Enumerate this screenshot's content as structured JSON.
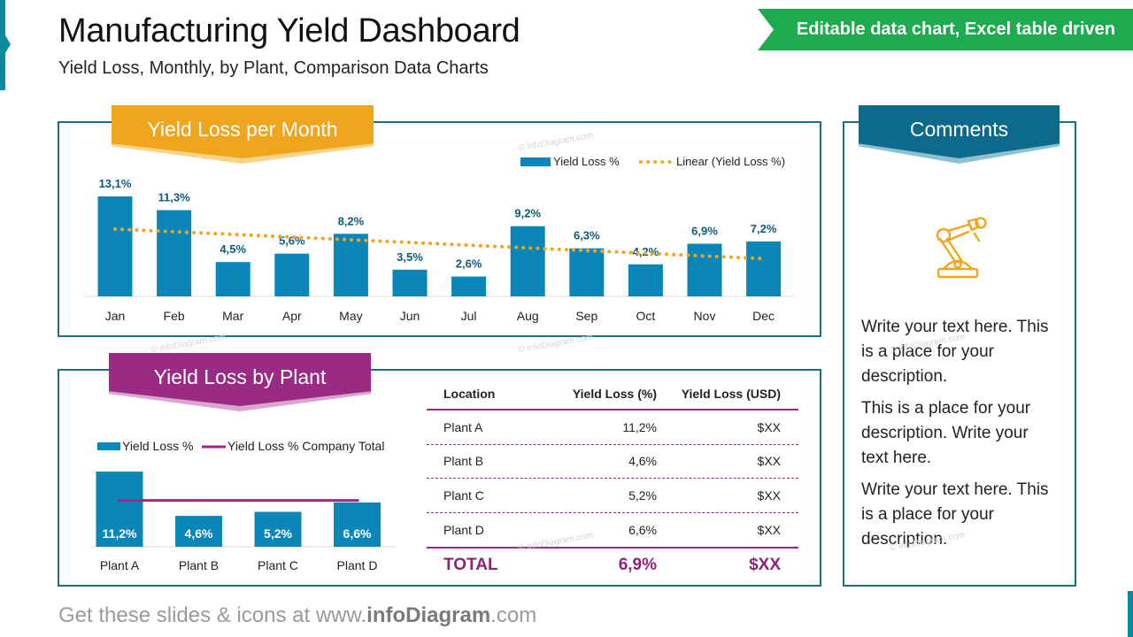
{
  "header": {
    "title": "Manufacturing Yield Dashboard",
    "subtitle": "Yield Loss, Monthly, by Plant, Comparison Data Charts",
    "ribbon": "Editable data chart, Excel table driven"
  },
  "colors": {
    "bar": "#0a86b8",
    "trend": "#f0a51e",
    "plant_accent": "#9b2a84",
    "panel_border": "#1b6f7f",
    "ribbon": "#1eaa4e"
  },
  "watermark": "© infoDiagram.com",
  "month_section": {
    "title": "Yield Loss per Month"
  },
  "plant_section": {
    "title": "Yield Loss by Plant"
  },
  "chart_data": [
    {
      "type": "bar",
      "title": "Yield Loss per Month",
      "categories": [
        "Jan",
        "Feb",
        "Mar",
        "Apr",
        "May",
        "Jun",
        "Jul",
        "Aug",
        "Sep",
        "Oct",
        "Nov",
        "Dec"
      ],
      "values": [
        13.1,
        11.3,
        4.5,
        5.6,
        8.2,
        3.5,
        2.6,
        9.2,
        6.3,
        4.2,
        6.9,
        7.2
      ],
      "labels": [
        "13,1%",
        "11,3%",
        "4,5%",
        "5,6%",
        "8,2%",
        "3,5%",
        "2,6%",
        "9,2%",
        "6,3%",
        "4,2%",
        "6,9%",
        "7,2%"
      ],
      "legend": [
        "Yield Loss %",
        "Linear (Yield Loss %)"
      ],
      "trendline": "linear",
      "ylim": [
        0,
        15
      ],
      "grid": false
    },
    {
      "type": "bar",
      "title": "Yield Loss by Plant",
      "categories": [
        "Plant A",
        "Plant B",
        "Plant C",
        "Plant D"
      ],
      "values": [
        11.2,
        4.6,
        5.2,
        6.6
      ],
      "labels": [
        "11,2%",
        "4,6%",
        "5,2%",
        "6,6%"
      ],
      "reference_line": 6.9,
      "legend": [
        "Yield Loss %",
        "Yield Loss % Company Total"
      ],
      "ylim": [
        0,
        12
      ],
      "grid": false
    }
  ],
  "table": {
    "headers": [
      "Location",
      "Yield Loss (%)",
      "Yield Loss (USD)"
    ],
    "rows": [
      [
        "Plant A",
        "11,2%",
        "$XX"
      ],
      [
        "Plant B",
        "4,6%",
        "$XX"
      ],
      [
        "Plant C",
        "5,2%",
        "$XX"
      ],
      [
        "Plant D",
        "6,6%",
        "$XX"
      ]
    ],
    "total": [
      "TOTAL",
      "6,9%",
      "$XX"
    ]
  },
  "comments": {
    "title": "Comments",
    "icon": "robot-arm-icon",
    "paragraphs": [
      "Write your text here. This is a place for your description.",
      "This is a place for your description. Write your text here.",
      "Write your text here. This is a place for your description."
    ]
  },
  "footer": {
    "prefix": "Get these slides & icons at www.",
    "brand": "infoDiagram",
    "suffix": ".com"
  }
}
